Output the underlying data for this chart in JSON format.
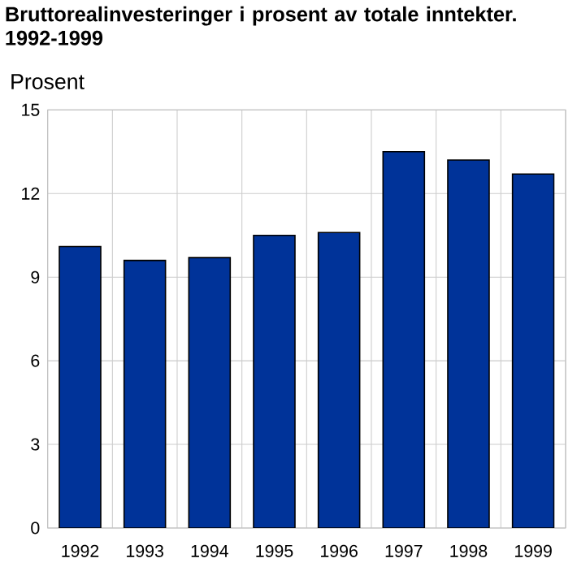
{
  "chart_data": {
    "type": "bar",
    "title": "Bruttorealinvesteringer i prosent av totale inntekter. 1992-1999",
    "ylabel": "Prosent",
    "categories": [
      "1992",
      "1993",
      "1994",
      "1995",
      "1996",
      "1997",
      "1998",
      "1999"
    ],
    "values": [
      10.1,
      9.6,
      9.7,
      10.5,
      10.6,
      13.5,
      13.2,
      12.7
    ],
    "color": "#003399",
    "ylim": [
      0,
      15
    ],
    "yticks": [
      0,
      3,
      6,
      9,
      12,
      15
    ],
    "grid": true
  }
}
